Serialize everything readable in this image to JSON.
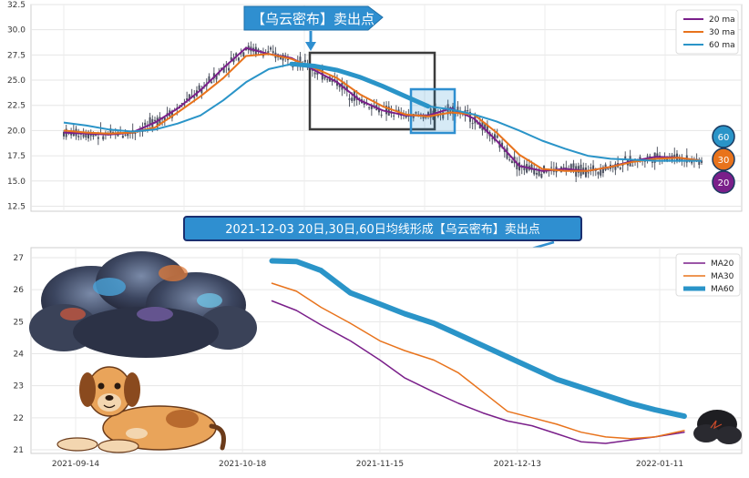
{
  "chart_data": [
    {
      "type": "candlestick",
      "ylim": [
        12,
        32.5
      ],
      "yticks": [
        "12.5",
        "15.0",
        "17.5",
        "20.0",
        "22.5",
        "25.0",
        "27.5",
        "30.0",
        "32.5"
      ],
      "grid": true,
      "legend_position": "top-right",
      "series": [
        {
          "name": "20 ma",
          "color": "#7a1f8a",
          "values": [
            19.8,
            19.7,
            19.6,
            19.8,
            20.8,
            22.2,
            24.0,
            26.2,
            28.2,
            27.6,
            27.2,
            26.0,
            24.8,
            23.0,
            22.0,
            21.5,
            21.5,
            22.2,
            21.2,
            19.0,
            16.5,
            16.0,
            16.2,
            16.0,
            16.4,
            17.0,
            17.4,
            17.3,
            17.0
          ]
        },
        {
          "name": "30 ma",
          "color": "#e8731c",
          "values": [
            20.0,
            19.8,
            19.7,
            19.8,
            20.3,
            21.8,
            23.4,
            25.2,
            27.4,
            27.6,
            27.1,
            26.2,
            25.2,
            23.6,
            22.4,
            21.6,
            21.4,
            21.8,
            21.6,
            19.8,
            17.6,
            16.2,
            16.0,
            16.0,
            16.4,
            16.9,
            17.2,
            17.3,
            17.0
          ]
        },
        {
          "name": "60 ma",
          "color": "#2a94c8",
          "values": [
            20.8,
            20.5,
            20.1,
            19.9,
            20.1,
            20.7,
            21.5,
            23.0,
            24.8,
            26.1,
            26.6,
            26.4,
            26.0,
            25.3,
            24.4,
            23.4,
            22.4,
            22.1,
            21.6,
            20.9,
            20.0,
            19.0,
            18.2,
            17.5,
            17.2,
            17.1,
            17.0,
            17.0,
            17.0
          ]
        }
      ],
      "annotations": [
        "【乌云密布】卖出点"
      ],
      "badges": [
        "60",
        "30",
        "20"
      ]
    },
    {
      "type": "line",
      "x_ticks": [
        "2021-09-14",
        "2021-10-18",
        "2021-11-15",
        "2021-12-13",
        "2022-01-11"
      ],
      "ylim": [
        21,
        27
      ],
      "yticks": [
        "21",
        "22",
        "23",
        "24",
        "25",
        "26",
        "27"
      ],
      "grid": true,
      "legend_position": "top-right",
      "series": [
        {
          "name": "MA20",
          "color": "#7a1f8a",
          "x": [
            "2021-10-24",
            "2021-10-29",
            "2021-11-03",
            "2021-11-09",
            "2021-11-15",
            "2021-11-20",
            "2021-11-26",
            "2021-12-01",
            "2021-12-06",
            "2021-12-11",
            "2021-12-16",
            "2021-12-21",
            "2021-12-26",
            "2021-12-31",
            "2022-01-05",
            "2022-01-10",
            "2022-01-16"
          ],
          "values": [
            25.65,
            25.35,
            24.9,
            24.4,
            23.8,
            23.25,
            22.8,
            22.45,
            22.15,
            21.9,
            21.75,
            21.5,
            21.25,
            21.2,
            21.3,
            21.4,
            21.55
          ]
        },
        {
          "name": "MA30",
          "color": "#e8731c",
          "x": [
            "2021-10-24",
            "2021-10-29",
            "2021-11-03",
            "2021-11-09",
            "2021-11-15",
            "2021-11-20",
            "2021-11-26",
            "2021-12-01",
            "2021-12-06",
            "2021-12-11",
            "2021-12-16",
            "2021-12-21",
            "2021-12-26",
            "2021-12-31",
            "2022-01-05",
            "2022-01-10",
            "2022-01-16"
          ],
          "values": [
            26.2,
            25.95,
            25.45,
            24.95,
            24.4,
            24.1,
            23.8,
            23.4,
            22.8,
            22.2,
            22.0,
            21.8,
            21.55,
            21.4,
            21.35,
            21.4,
            21.6
          ]
        },
        {
          "name": "MA60",
          "color": "#2a94c8",
          "x": [
            "2021-10-24",
            "2021-10-29",
            "2021-11-03",
            "2021-11-09",
            "2021-11-15",
            "2021-11-20",
            "2021-11-26",
            "2021-12-01",
            "2021-12-06",
            "2021-12-11",
            "2021-12-16",
            "2021-12-21",
            "2021-12-26",
            "2021-12-31",
            "2022-01-05",
            "2022-01-10",
            "2022-01-16"
          ],
          "values": [
            26.9,
            26.88,
            26.6,
            25.9,
            25.55,
            25.25,
            24.95,
            24.6,
            24.25,
            23.9,
            23.55,
            23.2,
            22.95,
            22.7,
            22.45,
            22.25,
            22.05
          ]
        }
      ],
      "annotations": [
        "2021-12-03 20日,30日,60日均线形成【乌云密布】卖出点"
      ]
    }
  ]
}
